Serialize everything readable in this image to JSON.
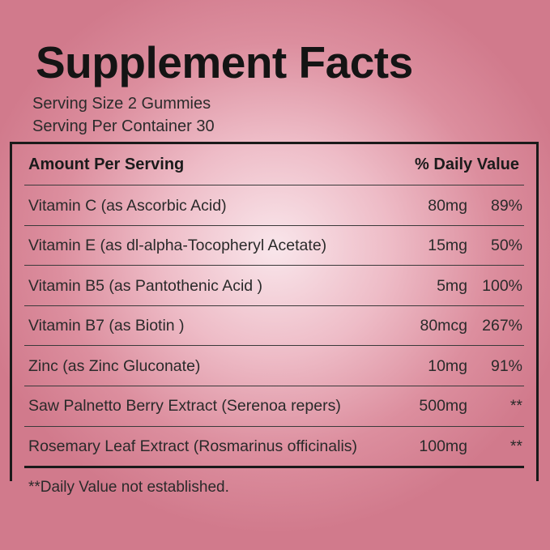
{
  "title": "Supplement Facts",
  "serving_size": "Serving Size 2 Gummies",
  "servings_per_container": "Serving Per Container 30",
  "table": {
    "header_amount": "Amount Per Serving",
    "header_dv": "% Daily Value",
    "rows": [
      {
        "name": "Vitamin C (as Ascorbic Acid)",
        "amount": "80mg",
        "dv": "89%"
      },
      {
        "name": "Vitamin E (as dl-alpha-Tocopheryl Acetate)",
        "amount": "15mg",
        "dv": "50%"
      },
      {
        "name": "Vitamin B5 (as Pantothenic Acid )",
        "amount": "5mg",
        "dv": "100%"
      },
      {
        "name": "Vitamin B7 (as Biotin )",
        "amount": "80mcg",
        "dv": "267%"
      },
      {
        "name": "Zinc (as Zinc Gluconate)",
        "amount": "10mg",
        "dv": "91%"
      },
      {
        "name": "Saw Palnetto Berry Extract (Serenoa repers)",
        "amount": "500mg",
        "dv": "**"
      },
      {
        "name": "Rosemary Leaf Extract (Rosmarinus officinalis)",
        "amount": "100mg",
        "dv": "**"
      }
    ]
  },
  "footnote": "**Daily Value not established.",
  "colors": {
    "background_center": "#f9e6eb",
    "background_edge": "#d17a8c",
    "text": "#1e1e1e"
  }
}
